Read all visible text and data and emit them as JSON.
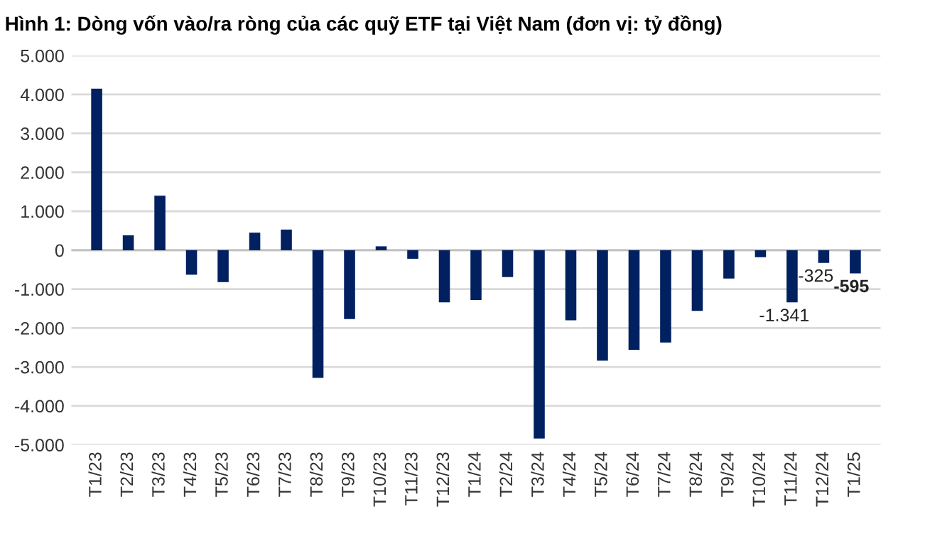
{
  "chart_data": {
    "type": "bar",
    "title": "Hình 1: Dòng vốn vào/ra ròng của các quỹ ETF tại Việt Nam (đơn vị: tỷ đồng)",
    "categories": [
      "T1/23",
      "T2/23",
      "T3/23",
      "T4/23",
      "T5/23",
      "T6/23",
      "T7/23",
      "T8/23",
      "T9/23",
      "T10/23",
      "T11/23",
      "T12/23",
      "T1/24",
      "T2/24",
      "T3/24",
      "T4/24",
      "T5/24",
      "T6/24",
      "T7/24",
      "T8/24",
      "T9/24",
      "T10/24",
      "T11/24",
      "T12/24",
      "T1/25"
    ],
    "values": [
      4150,
      380,
      1400,
      -630,
      -820,
      450,
      530,
      -3280,
      -1770,
      100,
      -220,
      -1340,
      -1280,
      -690,
      -4840,
      -1800,
      -2840,
      -2560,
      -2370,
      -1560,
      -730,
      -180,
      -1341,
      -325,
      -595
    ],
    "value_labels": [
      null,
      null,
      null,
      null,
      null,
      null,
      null,
      null,
      null,
      null,
      null,
      null,
      null,
      null,
      null,
      null,
      null,
      null,
      null,
      null,
      null,
      null,
      "-1.341",
      "-325",
      "-595"
    ],
    "color": "#002060",
    "ylim": [
      -5000,
      5000
    ],
    "yticks": [
      {
        "value": -5000,
        "label": "-5.000"
      },
      {
        "value": -4000,
        "label": "-4.000"
      },
      {
        "value": -3000,
        "label": "-3.000"
      },
      {
        "value": -2000,
        "label": "-2.000"
      },
      {
        "value": -1000,
        "label": "-1.000"
      },
      0,
      {
        "value": 1000,
        "label": "1.000"
      },
      {
        "value": 2000,
        "label": "2.000"
      },
      {
        "value": 3000,
        "label": "3.000"
      },
      {
        "value": 4000,
        "label": "4.000"
      },
      {
        "value": 5000,
        "label": "5.000"
      }
    ],
    "grid": "y",
    "legend": false
  }
}
